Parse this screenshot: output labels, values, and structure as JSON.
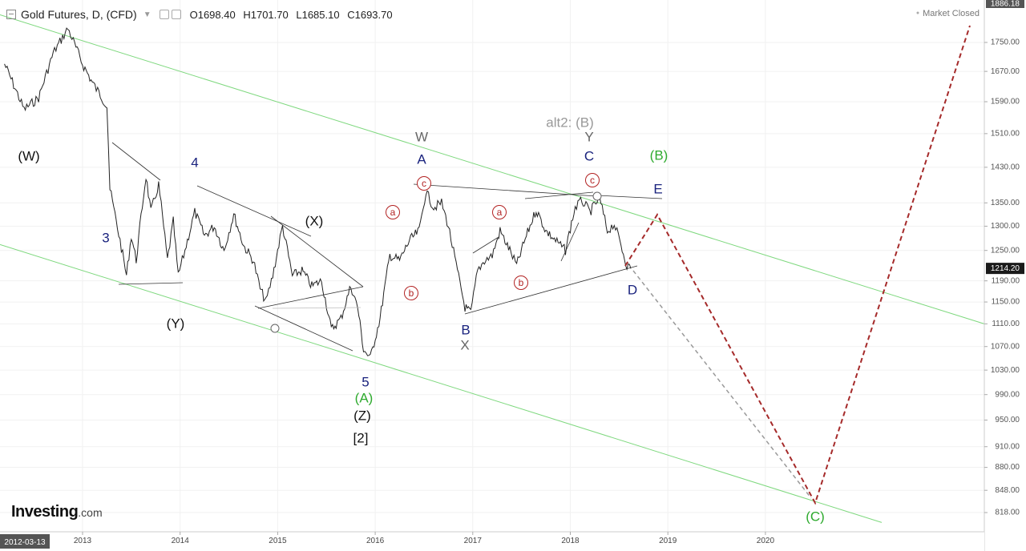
{
  "header": {
    "symbol": "Gold Futures, D, (CFD)",
    "open": "O1698.40",
    "high": "H1701.70",
    "low": "L1685.10",
    "close": "C1693.70",
    "status": "Market Closed",
    "logo_bold": "Investing",
    "logo_rest": ".com"
  },
  "chart_data": {
    "type": "line",
    "title": "Gold Futures, D, (CFD)",
    "y_axis": {
      "scale": "log",
      "ticks": [
        818,
        848,
        880,
        910,
        950,
        990,
        1030,
        1070,
        1110,
        1150,
        1190,
        1250,
        1300,
        1350,
        1430,
        1510,
        1590,
        1670,
        1750
      ]
    },
    "y_top_label": "1886.18",
    "last_price_label": "1214.20",
    "x_axis": {
      "start_label": "2012-03-13",
      "year_ticks": [
        "2013",
        "2014",
        "2015",
        "2016",
        "2017",
        "2018",
        "2019",
        "2020"
      ]
    },
    "price_series": [
      [
        "2012.20",
        1690
      ],
      [
        "2012.40",
        1570
      ],
      [
        "2012.55",
        1600
      ],
      [
        "2012.70",
        1720
      ],
      [
        "2012.85",
        1790
      ],
      [
        "2013.00",
        1690
      ],
      [
        "2013.10",
        1640
      ],
      [
        "2013.25",
        1580
      ],
      [
        "2013.28",
        1380
      ],
      [
        "2013.45",
        1200
      ],
      [
        "2013.50",
        1280
      ],
      [
        "2013.55",
        1230
      ],
      [
        "2013.65",
        1410
      ],
      [
        "2013.70",
        1330
      ],
      [
        "2013.78",
        1390
      ],
      [
        "2013.87",
        1230
      ],
      [
        "2013.93",
        1310
      ],
      [
        "2013.98",
        1200
      ],
      [
        "2014.05",
        1250
      ],
      [
        "2014.15",
        1330
      ],
      [
        "2014.25",
        1280
      ],
      [
        "2014.35",
        1300
      ],
      [
        "2014.45",
        1250
      ],
      [
        "2014.55",
        1325
      ],
      [
        "2014.65",
        1260
      ],
      [
        "2014.75",
        1230
      ],
      [
        "2014.82",
        1175
      ],
      [
        "2014.88",
        1150
      ],
      [
        "2014.95",
        1200
      ],
      [
        "2015.05",
        1300
      ],
      [
        "2015.15",
        1200
      ],
      [
        "2015.25",
        1210
      ],
      [
        "2015.35",
        1180
      ],
      [
        "2015.45",
        1190
      ],
      [
        "2015.55",
        1100
      ],
      [
        "2015.65",
        1120
      ],
      [
        "2015.75",
        1180
      ],
      [
        "2015.82",
        1140
      ],
      [
        "2015.88",
        1065
      ],
      [
        "2015.95",
        1050
      ],
      [
        "2016.05",
        1120
      ],
      [
        "2016.15",
        1240
      ],
      [
        "2016.25",
        1230
      ],
      [
        "2016.35",
        1270
      ],
      [
        "2016.45",
        1290
      ],
      [
        "2016.52",
        1375
      ],
      [
        "2016.60",
        1340
      ],
      [
        "2016.68",
        1350
      ],
      [
        "2016.75",
        1300
      ],
      [
        "2016.83",
        1220
      ],
      [
        "2016.92",
        1140
      ],
      [
        "2016.98",
        1130
      ],
      [
        "2017.05",
        1210
      ],
      [
        "2017.12",
        1230
      ],
      [
        "2017.20",
        1240
      ],
      [
        "2017.28",
        1290
      ],
      [
        "2017.38",
        1250
      ],
      [
        "2017.45",
        1220
      ],
      [
        "2017.55",
        1280
      ],
      [
        "2017.65",
        1335
      ],
      [
        "2017.75",
        1290
      ],
      [
        "2017.85",
        1270
      ],
      [
        "2017.95",
        1250
      ],
      [
        "2018.05",
        1340
      ],
      [
        "2018.12",
        1355
      ],
      [
        "2018.20",
        1330
      ],
      [
        "2018.30",
        1360
      ],
      [
        "2018.38",
        1290
      ],
      [
        "2018.45",
        1305
      ],
      [
        "2018.52",
        1260
      ],
      [
        "2018.58",
        1220
      ],
      [
        "2018.62",
        1214
      ]
    ],
    "wave_labels": [
      {
        "text": "(W)",
        "color": "#111111"
      },
      {
        "text": "3",
        "color": "#1a237e"
      },
      {
        "text": "4",
        "color": "#1a237e"
      },
      {
        "text": "(Y)",
        "color": "#111111"
      },
      {
        "text": "(X)",
        "color": "#111111"
      },
      {
        "text": "5",
        "color": "#1a237e"
      },
      {
        "text": "(A)",
        "color": "#2eaa2e"
      },
      {
        "text": "(Z)",
        "color": "#111111"
      },
      {
        "text": "[2]",
        "color": "#111111"
      },
      {
        "text": "W",
        "color": "#666666"
      },
      {
        "text": "A",
        "color": "#1a237e"
      },
      {
        "text": "B",
        "color": "#1a237e"
      },
      {
        "text": "X",
        "color": "#666666"
      },
      {
        "text": "alt2: (B)",
        "color": "#999999"
      },
      {
        "text": "Y",
        "color": "#666666"
      },
      {
        "text": "C",
        "color": "#1a237e"
      },
      {
        "text": "(B)",
        "color": "#2eaa2e"
      },
      {
        "text": "E",
        "color": "#1a237e"
      },
      {
        "text": "D",
        "color": "#1a237e"
      },
      {
        "text": "(C)",
        "color": "#2eaa2e"
      }
    ],
    "circle_labels": [
      "c",
      "a",
      "b",
      "a",
      "b",
      "c"
    ],
    "colors": {
      "channel": "#7ed87e",
      "projection": "#a52a2a",
      "alt_projection": "#999999",
      "price": "#222222"
    }
  }
}
